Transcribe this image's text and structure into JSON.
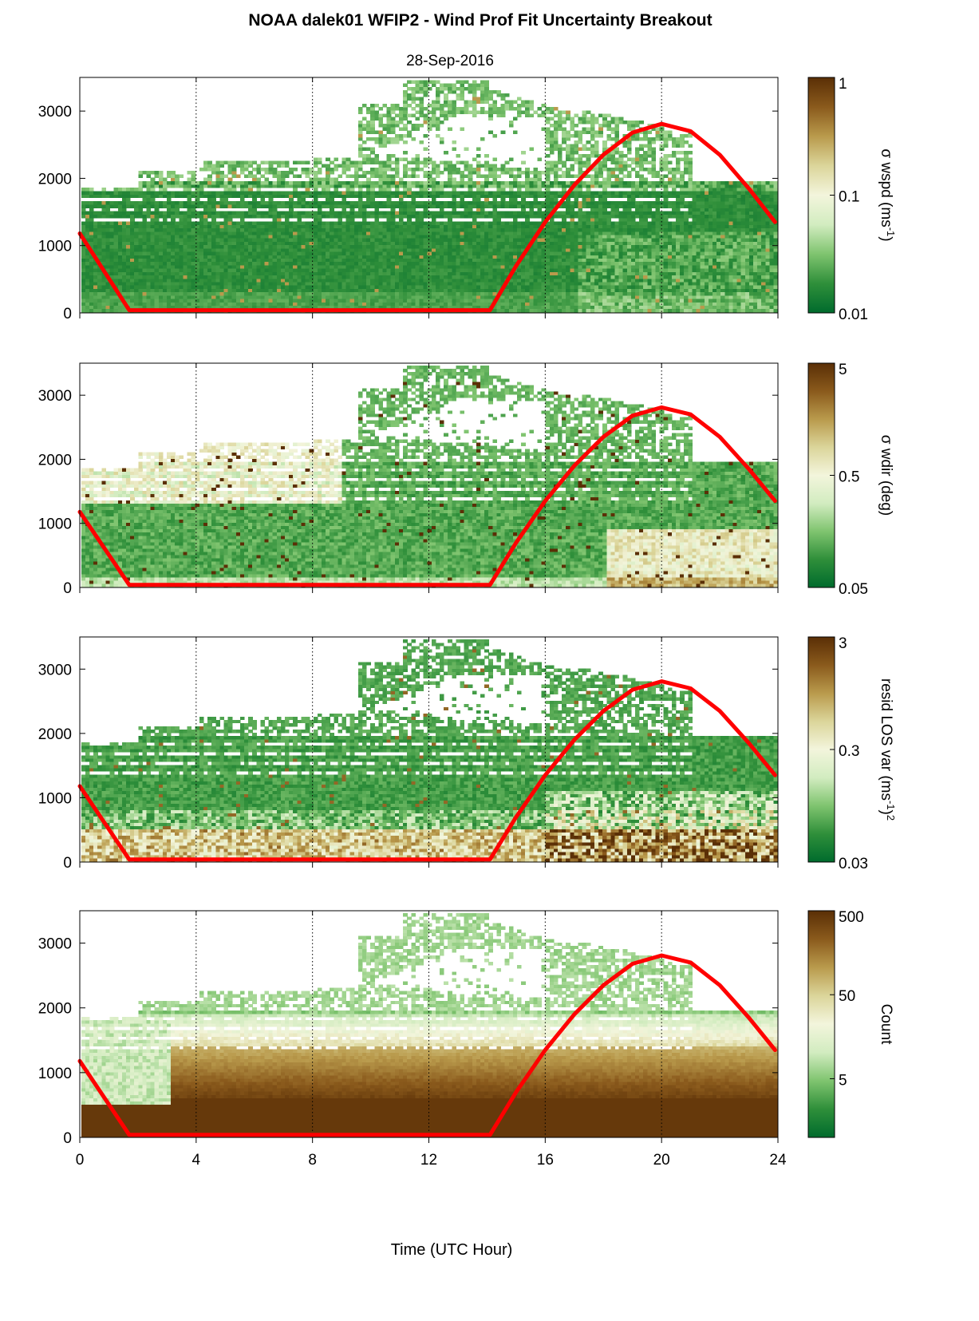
{
  "figure": {
    "title": "NOAA dalek01 WFIP2 - Wind Prof Fit Uncertainty Breakout",
    "subtitle": "28-Sep-2016",
    "xlabel": "Time (UTC Hour)"
  },
  "colors": {
    "overlay_line": "#ff0000",
    "background": "#ffffff",
    "colormap": [
      "#006b2d",
      "#2f8f3a",
      "#7fc46f",
      "#d2ecc0",
      "#f3f5dc",
      "#dbd59a",
      "#b99a4c",
      "#8a5a1c",
      "#5a2f06"
    ]
  },
  "chart_data": [
    {
      "type": "heatmap",
      "panel": "wspd",
      "ylabel": "",
      "xlim": [
        0,
        24
      ],
      "ylim": [
        0,
        3500
      ],
      "xticks": [
        "0",
        "4",
        "8",
        "12",
        "16",
        "20",
        "24"
      ],
      "yticks": [
        "0",
        "1000",
        "2000",
        "3000"
      ],
      "grid": "vertical dotted at 4, 8, 12, 16, 20",
      "colorbar": {
        "label": "σ wspd (ms",
        "label_sup": "-1",
        "label_end": ")",
        "scale": "log",
        "range": [
          0.01,
          1
        ],
        "ticks": [
          "0.01",
          "0.1",
          "1"
        ]
      },
      "overlay_line": {
        "x": [
          0,
          1.7,
          14.1,
          15,
          16,
          17,
          18,
          19,
          20,
          21,
          22,
          23,
          23.9
        ],
        "y": [
          1180,
          40,
          40,
          700,
          1350,
          1900,
          2350,
          2680,
          2810,
          2700,
          2350,
          1850,
          1350
        ]
      }
    },
    {
      "type": "heatmap",
      "panel": "wdir",
      "ylabel": "",
      "xlim": [
        0,
        24
      ],
      "ylim": [
        0,
        3500
      ],
      "xticks": [
        "0",
        "4",
        "8",
        "12",
        "16",
        "20",
        "24"
      ],
      "yticks": [
        "0",
        "1000",
        "2000",
        "3000"
      ],
      "grid": "vertical dotted at 4, 8, 12, 16, 20",
      "colorbar": {
        "label": "σ wdir (deg)",
        "label_sup": "",
        "label_end": "",
        "scale": "log",
        "range": [
          0.05,
          5
        ],
        "ticks": [
          "0.05",
          "0.5",
          "5"
        ]
      },
      "overlay_line": {
        "x": [
          0,
          1.7,
          14.1,
          15,
          16,
          17,
          18,
          19,
          20,
          21,
          22,
          23,
          23.9
        ],
        "y": [
          1180,
          40,
          40,
          700,
          1350,
          1900,
          2350,
          2680,
          2810,
          2700,
          2350,
          1850,
          1350
        ]
      }
    },
    {
      "type": "heatmap",
      "panel": "resid",
      "ylabel": "",
      "xlim": [
        0,
        24
      ],
      "ylim": [
        0,
        3500
      ],
      "xticks": [
        "0",
        "4",
        "8",
        "12",
        "16",
        "20",
        "24"
      ],
      "yticks": [
        "0",
        "1000",
        "2000",
        "3000"
      ],
      "grid": "vertical dotted at 4, 8, 12, 16, 20",
      "colorbar": {
        "label": "resid LOS var (ms",
        "label_sup": "-1",
        "label_end": ")",
        "label_sup2": "2",
        "scale": "log",
        "range": [
          0.03,
          3
        ],
        "ticks": [
          "0.03",
          "0.3",
          "3"
        ]
      },
      "overlay_line": {
        "x": [
          0,
          1.7,
          14.1,
          15,
          16,
          17,
          18,
          19,
          20,
          21,
          22,
          23,
          23.9
        ],
        "y": [
          1180,
          40,
          40,
          700,
          1350,
          1900,
          2350,
          2680,
          2810,
          2700,
          2350,
          1850,
          1350
        ]
      }
    },
    {
      "type": "heatmap",
      "panel": "count",
      "ylabel": "",
      "xlim": [
        0,
        24
      ],
      "ylim": [
        0,
        3500
      ],
      "xticks": [
        "0",
        "4",
        "8",
        "12",
        "16",
        "20",
        "24"
      ],
      "yticks": [
        "0",
        "1000",
        "2000",
        "3000"
      ],
      "grid": "vertical dotted at 4, 8, 12, 16, 20",
      "colorbar": {
        "label": "Count",
        "label_sup": "",
        "label_end": "",
        "scale": "log",
        "range": [
          1,
          500
        ],
        "ticks": [
          "5",
          "50",
          "500"
        ]
      },
      "overlay_line": {
        "x": [
          0,
          1.7,
          14.1,
          15,
          16,
          17,
          18,
          19,
          20,
          21,
          22,
          23,
          23.9
        ],
        "y": [
          1180,
          40,
          40,
          700,
          1350,
          1900,
          2350,
          2680,
          2810,
          2700,
          2350,
          1850,
          1350
        ]
      }
    }
  ]
}
